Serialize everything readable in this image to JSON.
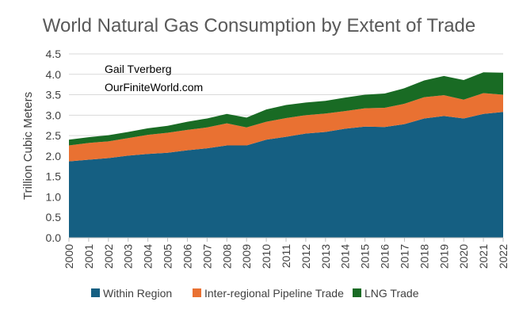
{
  "chart_data": {
    "type": "area",
    "stacked": true,
    "title": "World Natural Gas Consumption by Extent of Trade",
    "annotation": [
      "Gail Tverberg",
      "OurFiniteWorld.com"
    ],
    "xlabel": "",
    "ylabel": "Trillion Cubic Meters",
    "ylim": [
      0,
      4.5
    ],
    "yticks": [
      "0.0",
      "0.5",
      "1.0",
      "1.5",
      "2.0",
      "2.5",
      "3.0",
      "3.5",
      "4.0",
      "4.5"
    ],
    "grid": true,
    "legend_position": "bottom",
    "x": [
      "2000",
      "2001",
      "2002",
      "2003",
      "2004",
      "2005",
      "2006",
      "2007",
      "2008",
      "2009",
      "2010",
      "2011",
      "2012",
      "2013",
      "2014",
      "2015",
      "2016",
      "2017",
      "2018",
      "2019",
      "2020",
      "2021",
      "2022"
    ],
    "series": [
      {
        "name": "Within Region",
        "color": "#155F82",
        "values": [
          1.87,
          1.91,
          1.95,
          2.01,
          2.05,
          2.08,
          2.14,
          2.19,
          2.26,
          2.26,
          2.4,
          2.47,
          2.55,
          2.59,
          2.67,
          2.72,
          2.71,
          2.78,
          2.92,
          2.98,
          2.92,
          3.03,
          3.08
        ]
      },
      {
        "name": "Inter-regional Pipeline Trade",
        "color": "#E97132",
        "values": [
          0.39,
          0.41,
          0.41,
          0.43,
          0.47,
          0.49,
          0.5,
          0.51,
          0.54,
          0.44,
          0.44,
          0.46,
          0.45,
          0.45,
          0.43,
          0.45,
          0.47,
          0.5,
          0.52,
          0.51,
          0.46,
          0.51,
          0.42
        ]
      },
      {
        "name": "LNG Trade",
        "color": "#196B24",
        "values": [
          0.14,
          0.14,
          0.15,
          0.15,
          0.16,
          0.17,
          0.2,
          0.22,
          0.23,
          0.24,
          0.3,
          0.32,
          0.31,
          0.31,
          0.33,
          0.33,
          0.35,
          0.38,
          0.41,
          0.47,
          0.48,
          0.51,
          0.54
        ]
      }
    ]
  }
}
